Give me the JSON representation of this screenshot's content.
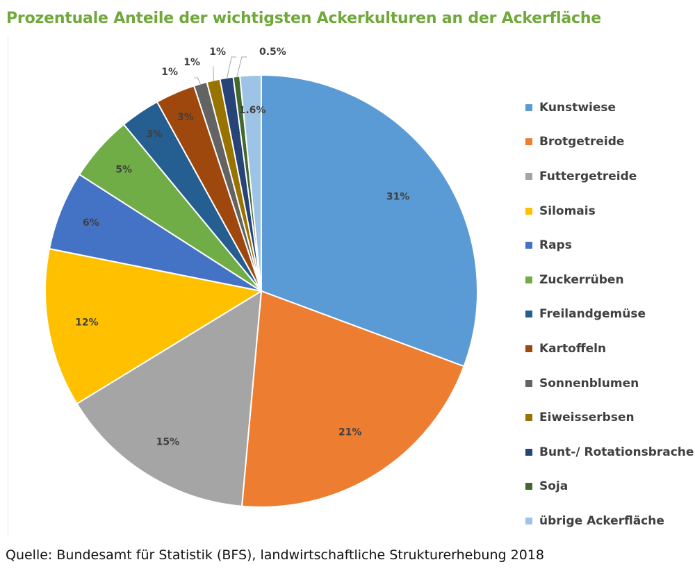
{
  "title": "Prozentuale Anteile der wichtigsten Ackerkulturen an der Ackerfläche",
  "source": "Quelle: Bundesamt für Statistik (BFS), landwirtschaftliche Strukturerhebung 2018",
  "chart_data": {
    "type": "pie",
    "title": "Prozentuale Anteile der wichtigsten Ackerkulturen an der Ackerfläche",
    "legend_position": "right",
    "slices": [
      {
        "name": "Kunstwiese",
        "value": 31,
        "label": "31%",
        "color": "#5b9bd5"
      },
      {
        "name": "Brotgetreide",
        "value": 21,
        "label": "21%",
        "color": "#ed7d31"
      },
      {
        "name": "Futtergetreide",
        "value": 15,
        "label": "15%",
        "color": "#a5a5a5"
      },
      {
        "name": "Silomais",
        "value": 12,
        "label": "12%",
        "color": "#ffc000"
      },
      {
        "name": "Raps",
        "value": 6,
        "label": "6%",
        "color": "#4472c4"
      },
      {
        "name": "Zuckerrüben",
        "value": 5,
        "label": "5%",
        "color": "#70ad47"
      },
      {
        "name": "Freilandgemüse",
        "value": 3,
        "label": "3%",
        "color": "#255e91"
      },
      {
        "name": "Kartoffeln",
        "value": 3,
        "label": "3%",
        "color": "#9e480e"
      },
      {
        "name": "Sonnenblumen",
        "value": 1,
        "label": "1%",
        "color": "#636363"
      },
      {
        "name": "Eiweisserbsen",
        "value": 1,
        "label": "1%",
        "color": "#997300"
      },
      {
        "name": "Bunt-/ Rotationsbrache",
        "value": 1,
        "label": "1%",
        "color": "#264478"
      },
      {
        "name": "Soja",
        "value": 0.5,
        "label": "0.5%",
        "color": "#43682b"
      },
      {
        "name": "übrige  Ackerfläche",
        "value": 1.6,
        "label": "1.6%",
        "color": "#9dc3e6"
      }
    ]
  }
}
